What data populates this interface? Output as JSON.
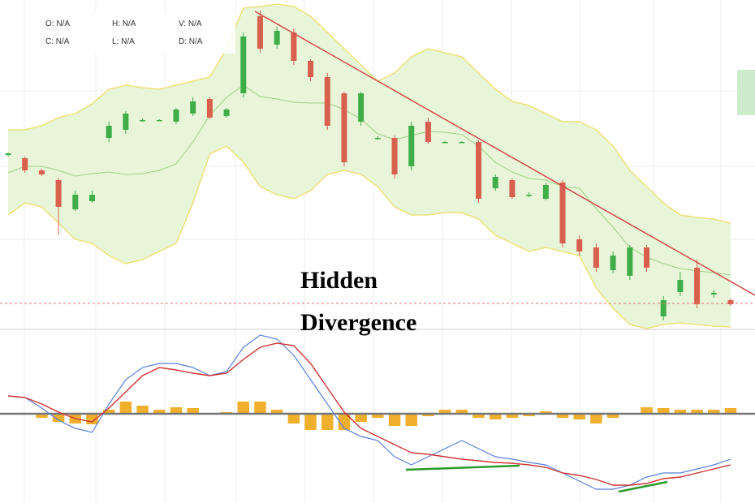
{
  "chart_data": {
    "type": "candlestick",
    "legend_labels": [
      "O: N/A",
      "H: N/A",
      "V: N/A",
      "C: N/A",
      "L: N/A",
      "D: N/A"
    ],
    "annotations": [
      "Hidden",
      "Divergence"
    ],
    "ylim": [
      0,
      405
    ],
    "up_color": "#3fae49",
    "down_color": "#d9604f",
    "open": [
      214,
      210,
      195,
      183,
      147,
      157,
      235,
      245,
      257,
      257,
      255,
      265,
      283,
      262,
      290,
      385,
      350,
      365,
      330,
      310,
      290,
      255,
      235,
      235,
      200,
      255,
      230,
      230,
      230,
      173,
      183,
      165,
      160,
      180,
      110,
      100,
      72,
      65,
      100,
      15,
      45,
      75,
      42,
      35
    ],
    "high": [
      217,
      212,
      197,
      186,
      170,
      170,
      255,
      268,
      259,
      258,
      272,
      285,
      285,
      272,
      365,
      392,
      372,
      370,
      332,
      315,
      292,
      292,
      237,
      238,
      255,
      260,
      231,
      231,
      232,
      190,
      185,
      168,
      180,
      183,
      115,
      105,
      95,
      103,
      103,
      40,
      70,
      85,
      48,
      37
    ],
    "low": [
      212,
      192,
      188,
      115,
      145,
      155,
      230,
      240,
      255,
      256,
      252,
      262,
      258,
      260,
      285,
      340,
      345,
      325,
      305,
      245,
      200,
      250,
      233,
      185,
      195,
      228,
      229,
      229,
      155,
      170,
      160,
      162,
      158,
      100,
      90,
      70,
      68,
      60,
      70,
      10,
      40,
      25,
      38,
      28
    ],
    "close": [
      216,
      195,
      190,
      150,
      165,
      165,
      250,
      265,
      257,
      257,
      270,
      280,
      260,
      270,
      360,
      345,
      367,
      330,
      310,
      250,
      205,
      290,
      235,
      190,
      250,
      230,
      230,
      230,
      160,
      187,
      162,
      165,
      177,
      105,
      95,
      75,
      90,
      100,
      75,
      35,
      60,
      30,
      44,
      30
    ],
    "bollinger": {
      "upper": [
        245,
        245,
        250,
        260,
        265,
        277,
        295,
        300,
        297,
        295,
        300,
        305,
        310,
        345,
        395,
        397,
        400,
        397,
        385,
        365,
        345,
        325,
        305,
        315,
        335,
        345,
        340,
        335,
        315,
        295,
        280,
        275,
        265,
        255,
        255,
        245,
        225,
        195,
        175,
        155,
        140,
        137,
        135,
        130
      ],
      "middle": [
        192,
        200,
        200,
        195,
        188,
        191,
        193,
        190,
        191,
        195,
        203,
        230,
        263,
        285,
        300,
        286,
        283,
        279,
        278,
        278,
        270,
        258,
        240,
        233,
        238,
        243,
        242,
        239,
        225,
        205,
        193,
        185,
        183,
        175,
        173,
        148,
        125,
        100,
        88,
        80,
        74,
        71,
        69,
        66
      ],
      "lower": [
        140,
        155,
        150,
        130,
        110,
        105,
        90,
        80,
        85,
        95,
        105,
        155,
        215,
        225,
        205,
        175,
        165,
        160,
        170,
        190,
        195,
        190,
        175,
        150,
        140,
        140,
        143,
        143,
        135,
        115,
        105,
        95,
        100,
        95,
        90,
        50,
        25,
        5,
        0,
        5,
        7,
        5,
        3,
        2
      ],
      "edge_color": "#eee27a",
      "fill": "#e8f5d8",
      "middle_color": "#9fcf86"
    },
    "macd": {
      "ylim": [
        -110,
        105
      ],
      "macd": [
        22,
        20,
        7,
        -8,
        -18,
        -23,
        12,
        42,
        57,
        62,
        62,
        57,
        47,
        52,
        82,
        97,
        92,
        72,
        42,
        12,
        -18,
        -28,
        -33,
        -53,
        -63,
        -53,
        -43,
        -33,
        -43,
        -53,
        -56,
        -60,
        -63,
        -73,
        -83,
        -93,
        -93,
        -88,
        -78,
        -73,
        -73,
        -68,
        -63,
        -56
      ],
      "signal": [
        22,
        20,
        12,
        2,
        -6,
        -10,
        7,
        27,
        47,
        57,
        54,
        50,
        47,
        50,
        67,
        82,
        87,
        84,
        62,
        32,
        2,
        -18,
        -28,
        -38,
        -48,
        -50,
        -53,
        -56,
        -58,
        -60,
        -61,
        -63,
        -66,
        -73,
        -76,
        -81,
        -88,
        -88,
        -86,
        -80,
        -78,
        -73,
        -68,
        -63
      ],
      "histogram": [
        0,
        0,
        -5,
        -10,
        -12,
        -13,
        5,
        15,
        10,
        5,
        8,
        7,
        0,
        2,
        15,
        15,
        5,
        -12,
        -20,
        -20,
        -20,
        -10,
        -5,
        -15,
        -15,
        -3,
        5,
        5,
        -5,
        -7,
        -5,
        -3,
        3,
        -5,
        -7,
        -12,
        -5,
        0,
        8,
        7,
        5,
        5,
        5,
        7
      ],
      "macd_color": "#5a7fd8",
      "signal_color": "#cf3434",
      "histogram_color": "#f0b02e"
    }
  }
}
